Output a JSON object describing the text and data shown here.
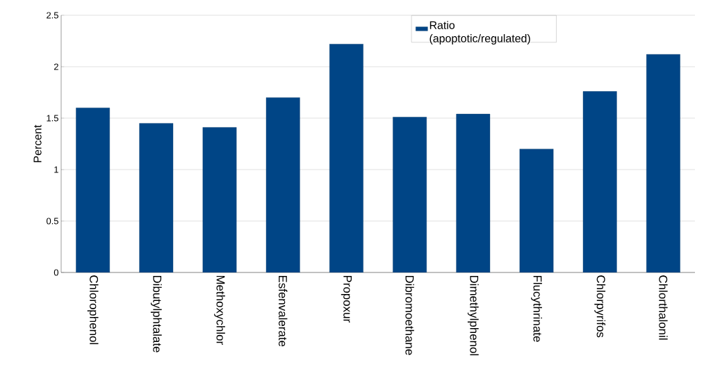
{
  "chart_data": {
    "type": "bar",
    "ylabel": "Percent",
    "categories": [
      "Chlorophenol",
      "Dibutylphtalate",
      "Methoxychlor",
      "Esfenvalerate",
      "Propoxur",
      "Dibromoethane",
      "Dimethylphenol",
      "Flucythrinate",
      "Chlorpyrifos",
      "Chlorthalonil"
    ],
    "series": [
      {
        "name": "Ratio (apoptotic/regulated)",
        "color": "#004586",
        "values": [
          1.6,
          1.45,
          1.41,
          1.7,
          2.22,
          1.51,
          1.54,
          1.2,
          1.76,
          2.12
        ]
      }
    ],
    "ylim": [
      0,
      2.5
    ],
    "yticks": [
      0,
      0.5,
      1,
      1.5,
      2,
      2.5
    ],
    "grid": "y",
    "legend": "top"
  }
}
